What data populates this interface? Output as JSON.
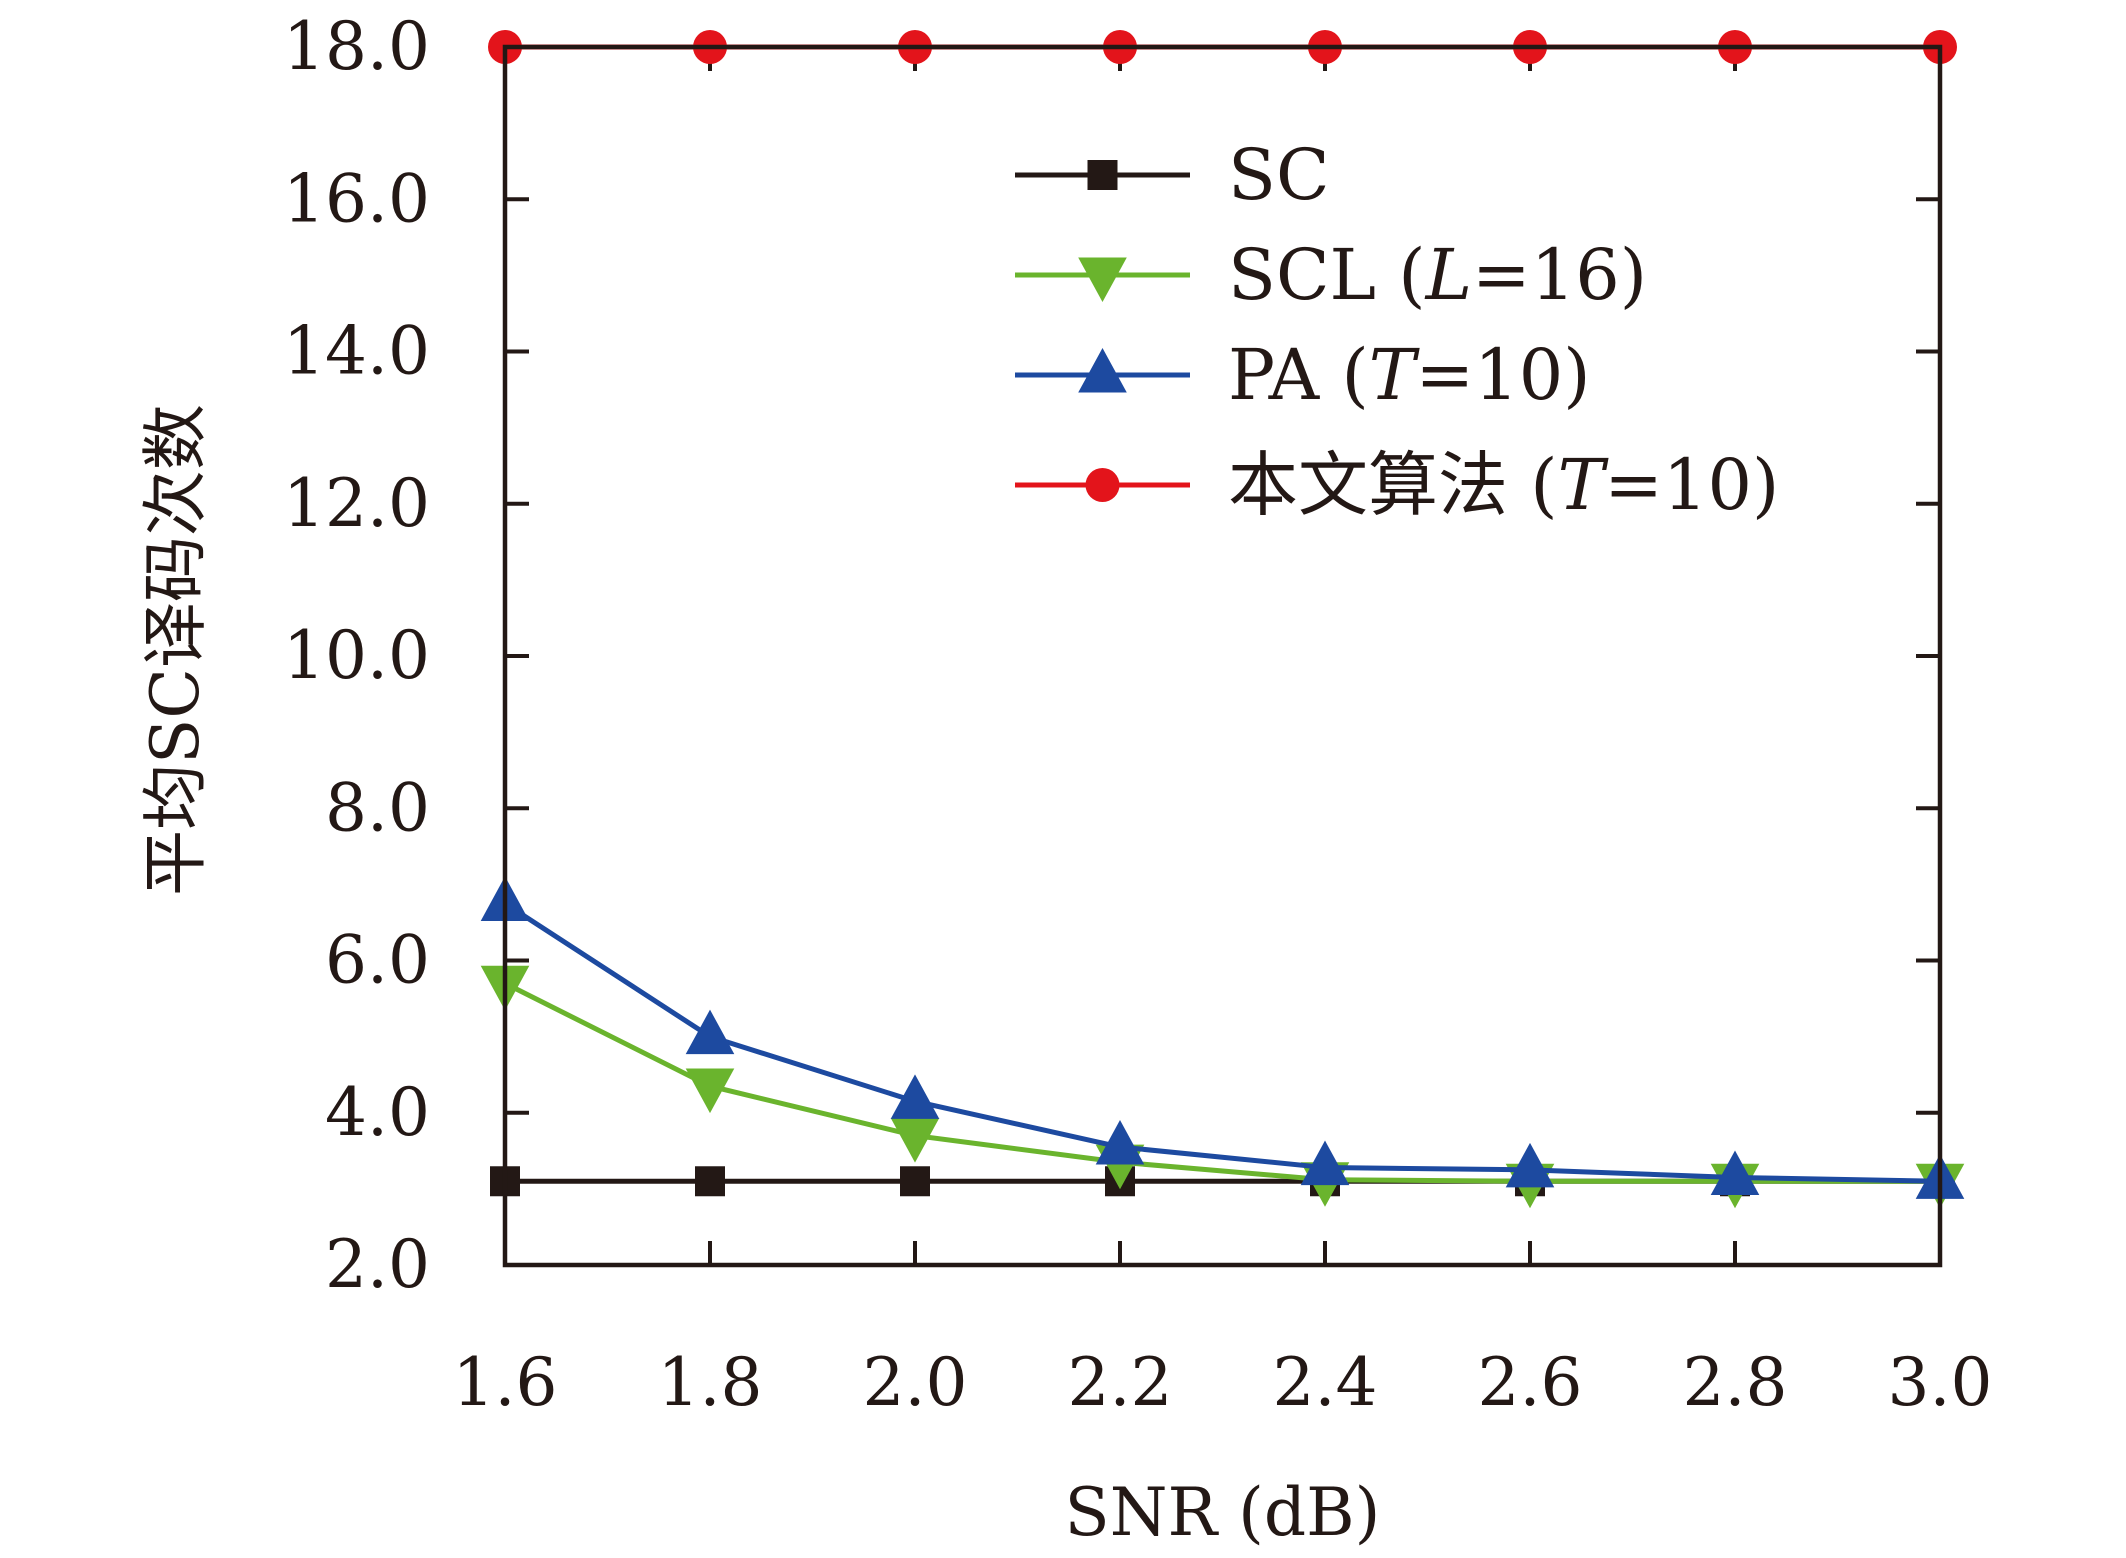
{
  "chart_data": {
    "type": "line",
    "xlabel": "SNR (dB)",
    "ylabel": "平均SC译码次数",
    "x": [
      1.6,
      1.8,
      2.0,
      2.2,
      2.4,
      2.6,
      2.8,
      3.0
    ],
    "x_tick_labels": [
      "1.6",
      "1.8",
      "2.0",
      "2.2",
      "2.4",
      "2.6",
      "2.8",
      "3.0"
    ],
    "y_ticks": [
      2,
      4,
      6,
      8,
      10,
      12,
      14,
      16,
      18
    ],
    "y_tick_labels": [
      "2.0",
      "4.0",
      "6.0",
      "8.0",
      "10.0",
      "12.0",
      "14.0",
      "16.0",
      "18.0"
    ],
    "xlim": [
      1.6,
      3.0
    ],
    "ylim": [
      2.0,
      18.0
    ],
    "grid": false,
    "legend_position": "top-right",
    "series": [
      {
        "name": "SC",
        "legend_parts": [
          "SC"
        ],
        "color": "#231815",
        "marker": "square",
        "values": [
          3.1,
          3.1,
          3.1,
          3.1,
          3.1,
          3.1,
          3.1,
          3.1
        ]
      },
      {
        "name": "SCL (L=16)",
        "legend_parts": [
          "SCL (",
          "L",
          "=16)"
        ],
        "color": "#6ab42d",
        "marker": "triangle-down",
        "values": [
          5.7,
          4.35,
          3.7,
          3.35,
          3.12,
          3.1,
          3.1,
          3.1
        ]
      },
      {
        "name": "PA (T=10)",
        "legend_parts": [
          "PA (",
          "T",
          "=10)"
        ],
        "color": "#1d4aa0",
        "marker": "triangle-up",
        "values": [
          6.75,
          5.0,
          4.15,
          3.55,
          3.28,
          3.25,
          3.15,
          3.1
        ]
      },
      {
        "name": "本文算法 (T=10)",
        "legend_parts": [
          "本文算法 (",
          "T",
          "=10)"
        ],
        "color": "#e3141b",
        "marker": "circle",
        "values": [
          18.0,
          18.0,
          18.0,
          18.0,
          18.0,
          18.0,
          18.0,
          18.0
        ]
      }
    ]
  }
}
